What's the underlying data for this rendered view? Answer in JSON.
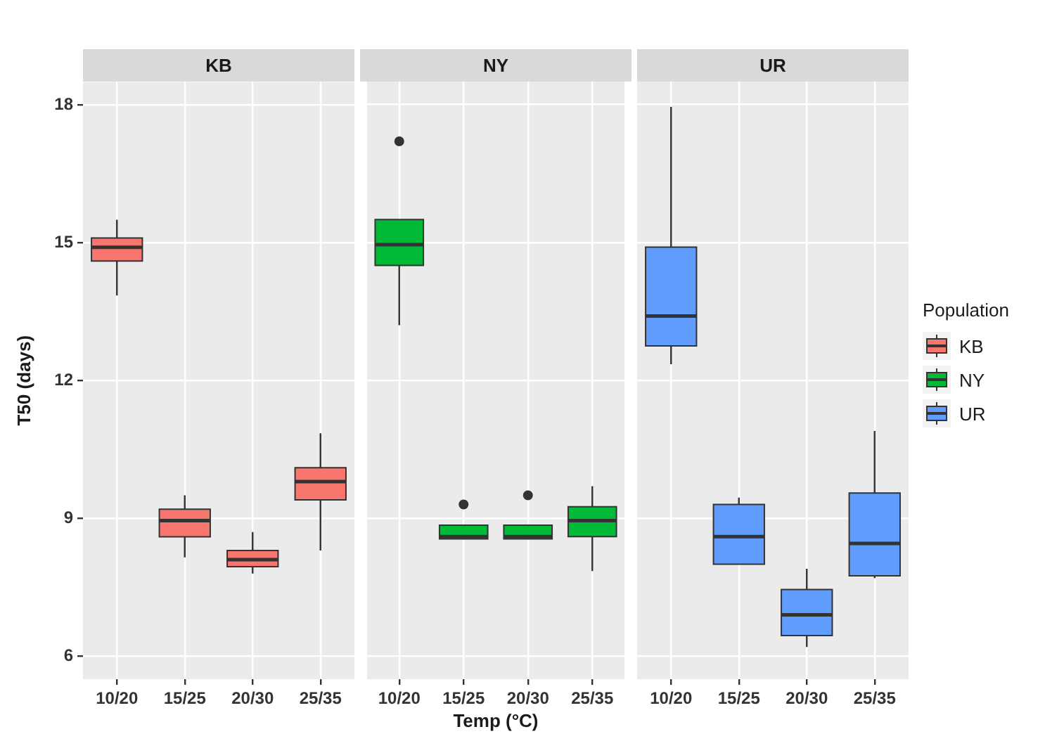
{
  "chart_data": [
    {
      "type": "box",
      "title": "KB",
      "ylabel": "T50 (days)",
      "categories": [
        "10/20",
        "15/25",
        "20/30",
        "25/35"
      ],
      "ylim": [
        5.5,
        18.5
      ],
      "yticks": [
        6,
        9,
        12,
        15,
        18
      ],
      "grid": true,
      "series": [
        {
          "name": "KB",
          "color": "#f8766d",
          "boxes": [
            {
              "low": 13.85,
              "q1": 14.6,
              "median": 14.9,
              "q3": 15.1,
              "high": 15.5
            },
            {
              "low": 8.15,
              "q1": 8.6,
              "median": 8.95,
              "q3": 9.2,
              "high": 9.5
            },
            {
              "low": 7.8,
              "q1": 7.95,
              "median": 8.1,
              "q3": 8.3,
              "high": 8.7
            },
            {
              "low": 8.3,
              "q1": 9.4,
              "median": 9.8,
              "q3": 10.1,
              "high": 10.85
            }
          ]
        }
      ]
    },
    {
      "type": "box",
      "title": "NY",
      "xlabel": "Temp (°C)",
      "categories": [
        "10/20",
        "15/25",
        "20/30",
        "25/35"
      ],
      "ylim": [
        5.5,
        18.5
      ],
      "yticks": [
        6,
        9,
        12,
        15,
        18
      ],
      "grid": true,
      "tick_labels": "x",
      "series": [
        {
          "name": "NY",
          "color": "#00ba38",
          "boxes": [
            {
              "low": 13.2,
              "q1": 14.5,
              "median": 14.95,
              "q3": 15.5,
              "high": 15.5,
              "outliers": [
                17.2
              ]
            },
            {
              "low": 8.55,
              "q1": 8.55,
              "median": 8.6,
              "q3": 8.85,
              "high": 8.85,
              "outliers": [
                9.3
              ]
            },
            {
              "low": 8.55,
              "q1": 8.55,
              "median": 8.6,
              "q3": 8.85,
              "high": 8.85,
              "outliers": [
                9.5
              ]
            },
            {
              "low": 7.85,
              "q1": 8.6,
              "median": 8.95,
              "q3": 9.25,
              "high": 9.7
            }
          ]
        }
      ]
    },
    {
      "type": "box",
      "title": "UR",
      "categories": [
        "10/20",
        "15/25",
        "20/30",
        "25/35"
      ],
      "ylim": [
        5.5,
        18.5
      ],
      "yticks": [
        6,
        9,
        12,
        15,
        18
      ],
      "grid": true,
      "tick_labels": "x",
      "legend": "right",
      "legend_title": "Population",
      "series": [
        {
          "name": "UR",
          "color": "#619cff",
          "boxes": [
            {
              "low": 12.35,
              "q1": 12.75,
              "median": 13.4,
              "q3": 14.9,
              "high": 17.95
            },
            {
              "low": 8.0,
              "q1": 8.0,
              "median": 8.6,
              "q3": 9.3,
              "high": 9.45
            },
            {
              "low": 6.2,
              "q1": 6.45,
              "median": 6.9,
              "q3": 7.45,
              "high": 7.9
            },
            {
              "low": 7.7,
              "q1": 7.75,
              "median": 8.45,
              "q3": 9.55,
              "high": 10.9
            }
          ]
        }
      ]
    }
  ]
}
